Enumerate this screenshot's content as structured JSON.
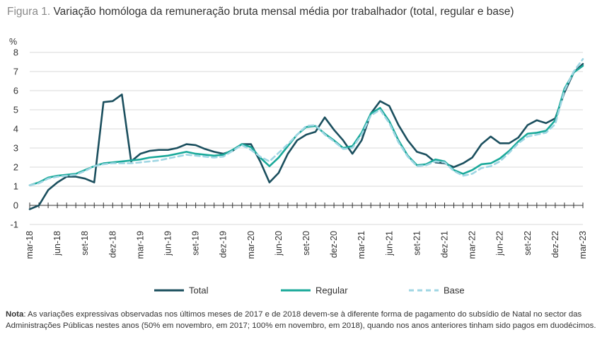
{
  "title": {
    "figure_label": "Figura 1.",
    "text": "Variação homóloga da remuneração bruta mensal média por trabalhador (total, regular e base)"
  },
  "note": {
    "label": "Nota",
    "text": ": As variações expressivas observadas nos últimos meses de 2017 e de 2018 devem-se à diferente forma de pagamento do subsídio de Natal no sector das Administrações Públicas nestes anos (50% em novembro, em 2017; 100% em novembro, em 2018), quando nos anos anteriores tinham sido pagos em duodécimos."
  },
  "colors": {
    "total": "#1b4f5e",
    "regular": "#1aa99a",
    "base": "#9fd6e3"
  },
  "chart_data": {
    "type": "line",
    "ylabel": "%",
    "ylim": [
      -1,
      8
    ],
    "yticks": [
      "-1",
      "0",
      "1",
      "2",
      "3",
      "4",
      "5",
      "6",
      "7",
      "8"
    ],
    "xtick_labels": [
      "mar-18",
      "jun-18",
      "set-18",
      "dez-18",
      "mar-19",
      "jun-19",
      "set-19",
      "dez-19",
      "mar-20",
      "jun-20",
      "set-20",
      "dez-20",
      "mar-21",
      "jun-21",
      "set-21",
      "dez-21",
      "mar-22",
      "jun-22",
      "set-22",
      "dez-22",
      "mar-23"
    ],
    "x": [
      "mar-18",
      "abr-18",
      "mai-18",
      "jun-18",
      "jul-18",
      "ago-18",
      "set-18",
      "out-18",
      "nov-18",
      "dez-18",
      "jan-19",
      "fev-19",
      "mar-19",
      "abr-19",
      "mai-19",
      "jun-19",
      "jul-19",
      "ago-19",
      "set-19",
      "out-19",
      "nov-19",
      "dez-19",
      "jan-20",
      "fev-20",
      "mar-20",
      "abr-20",
      "mai-20",
      "jun-20",
      "jul-20",
      "ago-20",
      "set-20",
      "out-20",
      "nov-20",
      "dez-20",
      "jan-21",
      "fev-21",
      "mar-21",
      "abr-21",
      "mai-21",
      "jun-21",
      "jul-21",
      "ago-21",
      "set-21",
      "out-21",
      "nov-21",
      "dez-21",
      "jan-22",
      "fev-22",
      "mar-22",
      "abr-22",
      "mai-22",
      "jun-22",
      "jul-22",
      "ago-22",
      "set-22",
      "out-22",
      "nov-22",
      "dez-22",
      "jan-23",
      "fev-23",
      "mar-23"
    ],
    "grid": "horizontal",
    "legend_position": "bottom",
    "series": [
      {
        "name": "Total",
        "key": "total",
        "style": "solid",
        "values": [
          -0.2,
          0.0,
          0.8,
          1.2,
          1.5,
          1.5,
          1.4,
          1.2,
          5.4,
          5.45,
          5.8,
          2.3,
          2.7,
          2.85,
          2.9,
          2.9,
          3.0,
          3.2,
          3.15,
          2.95,
          2.8,
          2.7,
          2.85,
          3.2,
          3.2,
          2.3,
          1.2,
          1.7,
          2.7,
          3.4,
          3.7,
          3.85,
          4.6,
          3.95,
          3.4,
          2.7,
          3.4,
          4.8,
          5.45,
          5.2,
          4.2,
          3.4,
          2.8,
          2.65,
          2.25,
          2.2,
          2.0,
          2.2,
          2.5,
          3.2,
          3.6,
          3.25,
          3.25,
          3.55,
          4.2,
          4.45,
          4.3,
          4.55,
          5.9,
          6.95,
          7.4
        ]
      },
      {
        "name": "Regular",
        "key": "regular",
        "style": "solid",
        "values": [
          1.05,
          1.2,
          1.45,
          1.55,
          1.6,
          1.65,
          1.85,
          2.05,
          2.2,
          2.25,
          2.3,
          2.35,
          2.4,
          2.5,
          2.55,
          2.6,
          2.7,
          2.8,
          2.7,
          2.65,
          2.6,
          2.65,
          2.9,
          3.2,
          3.05,
          2.5,
          2.05,
          2.5,
          3.1,
          3.7,
          4.1,
          4.15,
          3.75,
          3.4,
          3.0,
          3.1,
          3.8,
          4.8,
          5.1,
          4.4,
          3.4,
          2.6,
          2.1,
          2.15,
          2.4,
          2.3,
          1.85,
          1.65,
          1.85,
          2.15,
          2.2,
          2.45,
          2.85,
          3.35,
          3.75,
          3.8,
          3.9,
          4.45,
          6.1,
          6.95,
          7.3
        ]
      },
      {
        "name": "Base",
        "key": "base",
        "style": "dashed",
        "values": [
          1.05,
          1.15,
          1.4,
          1.5,
          1.55,
          1.6,
          1.8,
          2.05,
          2.15,
          2.2,
          2.2,
          2.2,
          2.25,
          2.3,
          2.35,
          2.45,
          2.55,
          2.65,
          2.6,
          2.55,
          2.5,
          2.55,
          2.85,
          3.15,
          2.9,
          2.55,
          2.3,
          2.75,
          3.2,
          3.7,
          4.15,
          4.2,
          3.7,
          3.35,
          2.95,
          3.0,
          3.7,
          4.7,
          5.0,
          4.3,
          3.3,
          2.55,
          2.05,
          2.1,
          2.3,
          2.25,
          1.8,
          1.55,
          1.65,
          1.95,
          2.05,
          2.3,
          2.75,
          3.25,
          3.6,
          3.7,
          3.8,
          4.25,
          6.0,
          7.0,
          7.65
        ]
      }
    ]
  }
}
